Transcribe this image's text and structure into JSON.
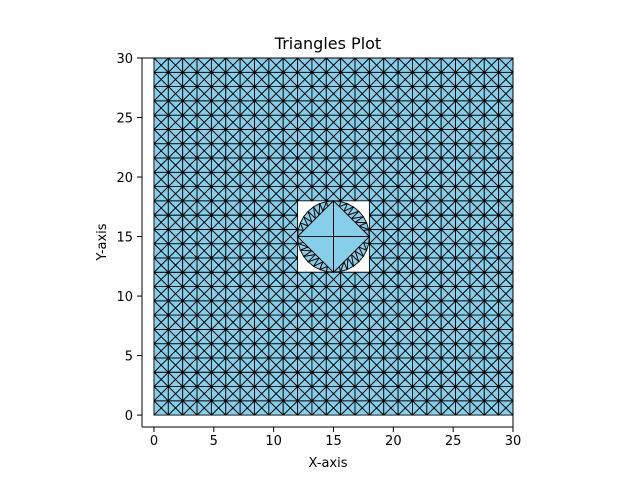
{
  "chart_data": {
    "type": "triangulation",
    "title": "Triangles Plot",
    "xlabel": "X-axis",
    "ylabel": "Y-axis",
    "xlim": [
      -1,
      30
    ],
    "ylim": [
      -1,
      30
    ],
    "xticks": [
      0,
      5,
      10,
      15,
      20,
      25,
      30
    ],
    "yticks": [
      0,
      5,
      10,
      15,
      20,
      25,
      30
    ],
    "grid": false,
    "face_color": "#87ceeb",
    "edge_color": "#000000",
    "mesh": {
      "domain": [
        [
          0,
          0
        ],
        [
          30,
          30
        ]
      ],
      "cell_size": 1.2,
      "hole": {
        "center": [
          15,
          15
        ],
        "circle_radius": 3,
        "diamond_vertices": [
          [
            15,
            18
          ],
          [
            18,
            15
          ],
          [
            15,
            12
          ],
          [
            12,
            15
          ]
        ]
      }
    }
  }
}
